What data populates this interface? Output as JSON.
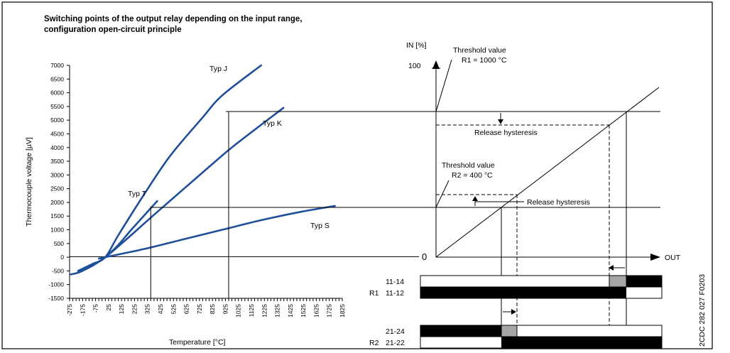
{
  "title_line1": "Switching points of the output relay depending on the input range,",
  "title_line2": "configuration open-circuit principle",
  "left_chart": {
    "xlabel": "Temperature [°C]",
    "ylabel": "Thermocouple voltage [µV]",
    "x_ticks": [
      -275,
      -175,
      -75,
      25,
      125,
      225,
      325,
      425,
      525,
      625,
      725,
      825,
      925,
      1025,
      1125,
      1225,
      1325,
      1425,
      1525,
      1625,
      1725,
      1825
    ],
    "y_ticks": [
      -1500,
      -1000,
      -500,
      0,
      500,
      1000,
      1500,
      2000,
      2500,
      3000,
      3500,
      4000,
      4500,
      5000,
      5500,
      6000,
      6500,
      7000
    ],
    "curve_labels": [
      "Typ J",
      "Typ K",
      "Typ T",
      "Typ S"
    ],
    "curves": {
      "typ_j": [
        [
          -210,
          -500
        ],
        [
          -100,
          -250
        ],
        [
          0,
          0
        ],
        [
          100,
          800
        ],
        [
          300,
          2300
        ],
        [
          500,
          3700
        ],
        [
          750,
          5100
        ],
        [
          900,
          5900
        ],
        [
          1200,
          7000
        ]
      ],
      "typ_k": [
        [
          -200,
          -550
        ],
        [
          0,
          0
        ],
        [
          400,
          1650
        ],
        [
          800,
          3300
        ],
        [
          1000,
          4100
        ],
        [
          1372,
          5450
        ]
      ],
      "typ_t": [
        [
          -270,
          -630
        ],
        [
          -200,
          -550
        ],
        [
          -100,
          -300
        ],
        [
          0,
          0
        ],
        [
          100,
          450
        ],
        [
          200,
          1000
        ],
        [
          400,
          2050
        ]
      ],
      "typ_s": [
        [
          -50,
          -50
        ],
        [
          0,
          0
        ],
        [
          300,
          300
        ],
        [
          600,
          650
        ],
        [
          900,
          1000
        ],
        [
          1200,
          1350
        ],
        [
          1500,
          1650
        ],
        [
          1768,
          1870
        ]
      ]
    },
    "vline_x": [
      350,
      950
    ],
    "hline_y": [
      1850,
      5300
    ]
  },
  "right_chart": {
    "y_axis_label": "IN [%]",
    "y_top_value": "100",
    "origin_label": "0",
    "x_axis_label": "OUT",
    "threshold1_line1": "Threshold value",
    "threshold1_line2": "R1 = 1000 °C",
    "threshold2_line1": "Threshold value",
    "threshold2_line2": "R2 = 400 °C",
    "hysteresis1": "Release hysteresis",
    "hysteresis2": "Release hysteresis"
  },
  "relays": {
    "r1_name": "R1",
    "r1_top": "11-14",
    "r1_bottom": "11-12",
    "r2_name": "R2",
    "r2_top": "21-24",
    "r2_bottom": "21-22"
  },
  "doc_code": "2CDC 282 027 F0203",
  "colors": {
    "curve": "#1f4f9a",
    "relay_gray": "#a6a6a6",
    "relay_black": "#000000"
  }
}
